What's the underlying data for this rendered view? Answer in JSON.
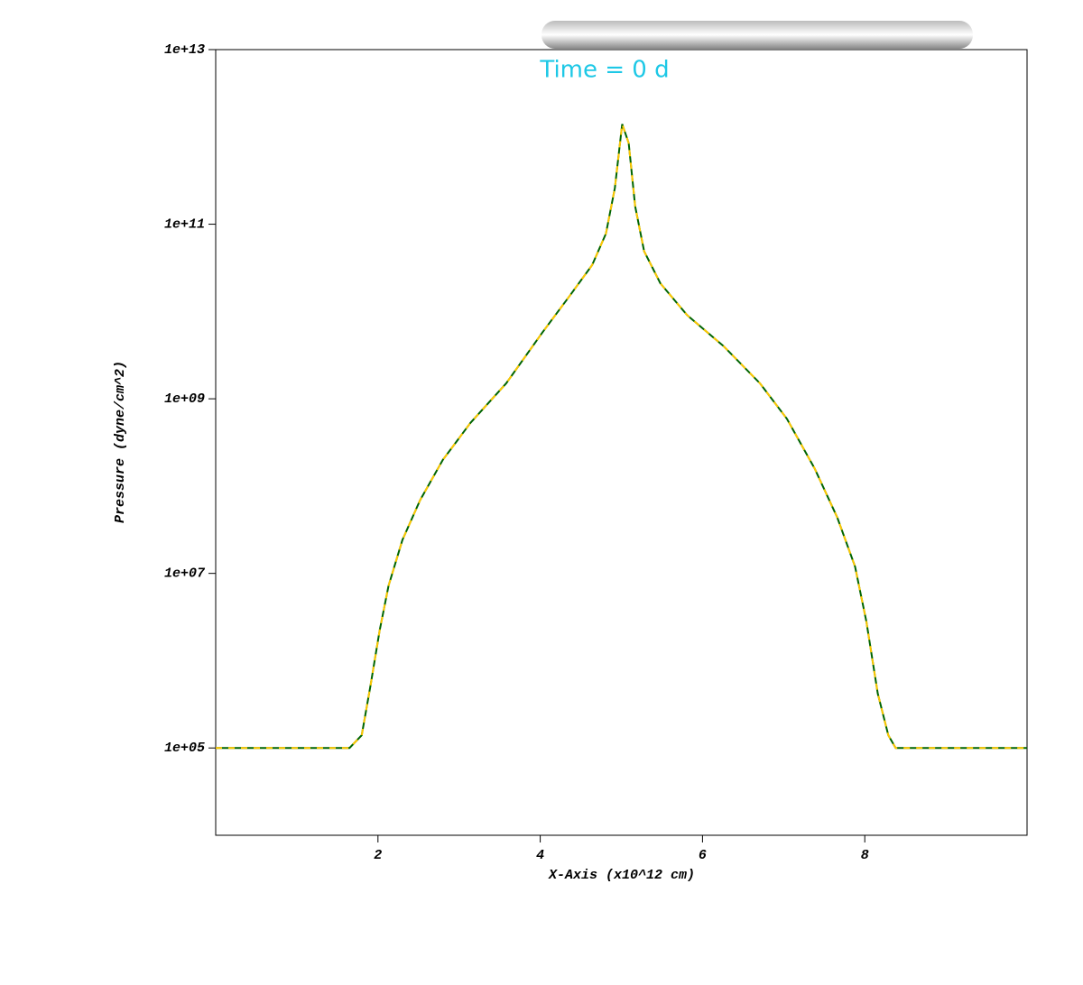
{
  "chart_data": {
    "type": "line",
    "annotation": "Time = 0 d",
    "x_label": "X-Axis (x10^12 cm)",
    "y_label": "Pressure (dyne/cm^2)",
    "x": [
      0,
      1.65,
      1.8,
      1.91,
      2.02,
      2.13,
      2.3,
      2.52,
      2.8,
      3.14,
      3.58,
      4.03,
      4.36,
      4.64,
      4.81,
      4.92,
      5.01,
      5.09,
      5.17,
      5.28,
      5.48,
      5.81,
      6.26,
      6.71,
      7.04,
      7.38,
      7.66,
      7.88,
      8.02,
      8.16,
      8.29,
      8.38,
      10
    ],
    "series": [
      {
        "color": "#006400",
        "style": "solid",
        "values": [
          100000,
          100000,
          140000,
          530000,
          2200000,
          7200000,
          24000000,
          69000000,
          200000000,
          530000000,
          1500000000,
          5800000000,
          15000000000,
          34000000000,
          78000000000,
          260000000000,
          1400000000000,
          850000000000,
          160000000000,
          49000000000,
          21000000000,
          9100000000,
          4000000000,
          1500000000,
          590000000,
          160000000,
          44000000,
          12000000,
          2800000,
          420000,
          140000,
          100000,
          100000
        ]
      },
      {
        "color": "#ffc800",
        "style": "dashed",
        "values": [
          100000,
          100000,
          140000,
          530000,
          2200000,
          7200000,
          24000000,
          69000000,
          200000000,
          530000000,
          1500000000,
          5800000000,
          15000000000,
          34000000000,
          78000000000,
          260000000000,
          1400000000000,
          850000000000,
          160000000000,
          49000000000,
          21000000000,
          9100000000,
          4000000000,
          1500000000,
          590000000,
          160000000,
          44000000,
          12000000,
          2800000,
          420000,
          140000,
          100000,
          100000
        ]
      }
    ],
    "xlim": [
      0,
      10
    ],
    "xticks": [
      2,
      4,
      6,
      8
    ],
    "ylim": [
      10000,
      10000000000000
    ],
    "ylog": true,
    "yticks": [
      {
        "value": 100000,
        "label": "1e+05"
      },
      {
        "value": 10000000,
        "label": "1e+07"
      },
      {
        "value": 1000000000,
        "label": "1e+09"
      },
      {
        "value": 100000000000,
        "label": "1e+11"
      },
      {
        "value": 10000000000000,
        "label": "1e+13"
      }
    ],
    "annotation_color": "#1ec8e6"
  }
}
